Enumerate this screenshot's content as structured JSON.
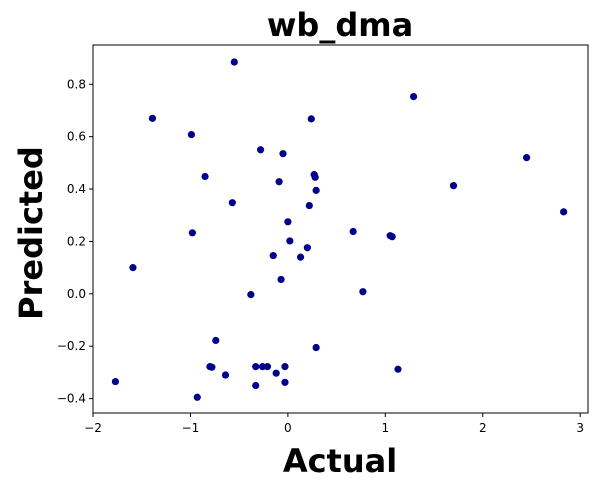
{
  "chart_data": {
    "type": "scatter",
    "title": "wb_dma",
    "xlabel": "Actual",
    "ylabel": "Predicted",
    "xlim": [
      -2.0,
      3.08
    ],
    "ylim": [
      -0.455,
      0.95
    ],
    "xticks": [
      -2,
      -1,
      0,
      1,
      2,
      3
    ],
    "xtick_labels": [
      "−2",
      "−1",
      "0",
      "1",
      "2",
      "3"
    ],
    "yticks": [
      -0.4,
      -0.2,
      0.0,
      0.2,
      0.4,
      0.6,
      0.8
    ],
    "ytick_labels": [
      "−0.4",
      "−0.2",
      "0.0",
      "0.2",
      "0.4",
      "0.6",
      "0.8"
    ],
    "grid": false,
    "marker_color": "#00008b",
    "points": [
      {
        "x": -1.77,
        "y": -0.335
      },
      {
        "x": -1.59,
        "y": 0.1
      },
      {
        "x": -1.39,
        "y": 0.67
      },
      {
        "x": -0.99,
        "y": 0.608
      },
      {
        "x": -0.98,
        "y": 0.233
      },
      {
        "x": -0.93,
        "y": -0.395
      },
      {
        "x": -0.85,
        "y": 0.448
      },
      {
        "x": -0.8,
        "y": -0.278
      },
      {
        "x": -0.78,
        "y": -0.28
      },
      {
        "x": -0.74,
        "y": -0.178
      },
      {
        "x": -0.64,
        "y": -0.31
      },
      {
        "x": -0.57,
        "y": 0.348
      },
      {
        "x": -0.55,
        "y": 0.885
      },
      {
        "x": -0.38,
        "y": -0.003
      },
      {
        "x": -0.33,
        "y": -0.278
      },
      {
        "x": -0.33,
        "y": -0.35
      },
      {
        "x": -0.28,
        "y": 0.55
      },
      {
        "x": -0.26,
        "y": -0.278
      },
      {
        "x": -0.21,
        "y": -0.278
      },
      {
        "x": -0.15,
        "y": 0.146
      },
      {
        "x": -0.12,
        "y": -0.303
      },
      {
        "x": -0.09,
        "y": 0.428
      },
      {
        "x": -0.07,
        "y": 0.055
      },
      {
        "x": -0.05,
        "y": 0.535
      },
      {
        "x": -0.03,
        "y": -0.278
      },
      {
        "x": -0.03,
        "y": -0.338
      },
      {
        "x": 0.0,
        "y": 0.275
      },
      {
        "x": 0.02,
        "y": 0.202
      },
      {
        "x": 0.13,
        "y": 0.14
      },
      {
        "x": 0.2,
        "y": 0.176
      },
      {
        "x": 0.22,
        "y": 0.337
      },
      {
        "x": 0.24,
        "y": 0.668
      },
      {
        "x": 0.27,
        "y": 0.455
      },
      {
        "x": 0.28,
        "y": 0.445
      },
      {
        "x": 0.29,
        "y": 0.395
      },
      {
        "x": 0.29,
        "y": -0.205
      },
      {
        "x": 0.67,
        "y": 0.238
      },
      {
        "x": 0.77,
        "y": 0.008
      },
      {
        "x": 1.05,
        "y": 0.222
      },
      {
        "x": 1.07,
        "y": 0.218
      },
      {
        "x": 1.13,
        "y": -0.288
      },
      {
        "x": 1.29,
        "y": 0.753
      },
      {
        "x": 1.7,
        "y": 0.413
      },
      {
        "x": 2.45,
        "y": 0.52
      },
      {
        "x": 2.83,
        "y": 0.313
      }
    ]
  }
}
